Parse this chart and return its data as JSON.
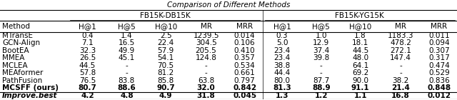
{
  "title": "Comparison of Different Methods",
  "columns_left": [
    "H@1",
    "H@5",
    "H@10",
    "MR",
    "MRR"
  ],
  "columns_right": [
    "H@1",
    "H@5",
    "H@10",
    "MR",
    "MRR"
  ],
  "group_left": "FB15K-DB15K",
  "group_right": "FB15K-YG15K",
  "col_method": "Method",
  "rows": [
    [
      "MTransE",
      "0.4",
      "1.4",
      "2.5",
      "1239.5",
      "0.014",
      "0.3",
      "1.0",
      "1.8",
      "1183.3",
      "0.011"
    ],
    [
      "GCN-Align",
      "7.1",
      "16.5",
      "22.4",
      "304.5",
      "0.106",
      "5.0",
      "12.9",
      "18.1",
      "478.2",
      "0.094"
    ],
    [
      "BootEA",
      "32.3",
      "49.9",
      "57.9",
      "205.5",
      "0.410",
      "23.4",
      "37.4",
      "44.5",
      "272.1",
      "0.307"
    ],
    [
      "MMEA",
      "26.5",
      "45.1",
      "54.1",
      "124.8",
      "0.357",
      "23.4",
      "39.8",
      "48.0",
      "147.4",
      "0.317"
    ],
    [
      "MCLEA",
      "44.5",
      "-",
      "70.5",
      "-",
      "0.534",
      "38.8",
      "-",
      "64.1",
      "-",
      "0.474"
    ],
    [
      "MEAformer",
      "57.8",
      "-",
      "81.2",
      "-",
      "0.661",
      "44.4",
      "-",
      "69.2",
      "-",
      "0.529"
    ],
    [
      "PathFusion",
      "76.5",
      "83.8",
      "85.8",
      "63.8",
      "0.797",
      "80.0",
      "87.7",
      "90.0",
      "38.2",
      "0.836"
    ],
    [
      "MCSFF (ours)",
      "80.7",
      "88.6",
      "90.7",
      "32.0",
      "0.842",
      "81.3",
      "88.9",
      "91.1",
      "21.4",
      "0.848"
    ],
    [
      "Improve.best",
      "4.2",
      "4.8",
      "4.9",
      "31.8",
      "0.045",
      "1.3",
      "1.2",
      "1.1",
      "16.8",
      "0.012"
    ]
  ],
  "bold_rows": [
    7,
    8
  ],
  "italic_rows": [
    8
  ],
  "fontsize": 7.5,
  "title_fontsize": 7.5
}
